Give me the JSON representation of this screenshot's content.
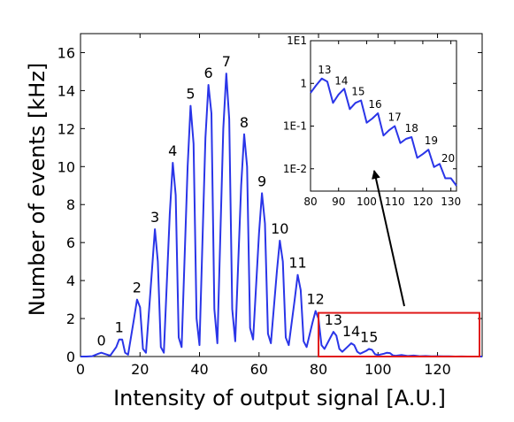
{
  "colors": {
    "line": "#2a35e8",
    "highlight": "#e01b1b",
    "arrow": "#000000"
  },
  "chart_data": [
    {
      "type": "line",
      "title": "",
      "xlabel": "Intensity of output signal [A.U.]",
      "ylabel": "Number of events [kHz]",
      "xlim": [
        0,
        135
      ],
      "ylim": [
        0,
        17
      ],
      "xticks": [
        0,
        20,
        40,
        60,
        80,
        100,
        120
      ],
      "yticks": [
        0,
        2,
        4,
        6,
        8,
        10,
        12,
        14,
        16
      ],
      "grid": false,
      "series": [
        {
          "x": [
            0,
            2,
            4,
            6,
            7,
            9,
            10,
            12,
            13,
            14,
            15,
            16,
            18,
            19,
            20,
            21,
            22,
            24,
            25,
            26,
            27,
            28,
            30,
            31,
            32,
            33,
            34,
            36,
            37,
            38,
            39,
            40,
            42,
            43,
            44,
            45,
            46,
            48,
            49,
            50,
            51,
            52,
            54,
            55,
            56,
            57,
            58,
            60,
            61,
            62,
            63,
            64,
            66,
            67,
            68,
            69,
            70,
            72,
            73,
            74,
            75,
            76,
            78,
            79,
            80,
            81,
            82,
            84,
            85,
            86,
            87,
            88,
            90,
            91,
            92,
            93,
            94,
            96,
            97,
            98,
            99,
            100,
            102,
            103,
            104,
            105,
            106,
            108,
            110,
            112,
            114,
            116,
            118,
            120,
            122,
            124,
            126,
            128,
            130,
            132,
            135
          ],
          "y": [
            0.0,
            0.0,
            0.02,
            0.15,
            0.2,
            0.1,
            0.05,
            0.5,
            0.9,
            0.9,
            0.2,
            0.1,
            2.0,
            3.0,
            2.6,
            0.4,
            0.2,
            4.5,
            6.7,
            5.0,
            0.5,
            0.2,
            7.5,
            10.2,
            8.5,
            1.0,
            0.5,
            10.0,
            13.2,
            11.2,
            2.0,
            0.6,
            11.5,
            14.3,
            12.8,
            2.5,
            0.7,
            12.0,
            14.9,
            12.5,
            2.5,
            0.8,
            9.0,
            11.7,
            10.0,
            1.5,
            0.9,
            6.5,
            8.6,
            7.0,
            1.2,
            0.7,
            4.5,
            6.1,
            5.0,
            1.0,
            0.6,
            3.0,
            4.3,
            3.5,
            0.8,
            0.5,
            1.8,
            2.4,
            2.0,
            0.6,
            0.4,
            1.0,
            1.3,
            1.1,
            0.4,
            0.25,
            0.55,
            0.7,
            0.6,
            0.25,
            0.15,
            0.3,
            0.4,
            0.35,
            0.12,
            0.08,
            0.15,
            0.2,
            0.18,
            0.06,
            0.04,
            0.08,
            0.03,
            0.05,
            0.02,
            0.03,
            0.01,
            0.02,
            0.01,
            0.01,
            0.0,
            0.005,
            0.0,
            0.0,
            0.0
          ]
        }
      ],
      "annotations": [
        {
          "text": "0",
          "x": 7,
          "y": 0.2
        },
        {
          "text": "1",
          "x": 13,
          "y": 0.9
        },
        {
          "text": "2",
          "x": 19,
          "y": 3.0
        },
        {
          "text": "3",
          "x": 25,
          "y": 6.7
        },
        {
          "text": "4",
          "x": 31,
          "y": 10.2
        },
        {
          "text": "5",
          "x": 37,
          "y": 13.2
        },
        {
          "text": "6",
          "x": 43,
          "y": 14.3
        },
        {
          "text": "7",
          "x": 49,
          "y": 14.9
        },
        {
          "text": "8",
          "x": 55,
          "y": 11.7
        },
        {
          "text": "9",
          "x": 61,
          "y": 8.6
        },
        {
          "text": "10",
          "x": 67,
          "y": 6.1
        },
        {
          "text": "11",
          "x": 73,
          "y": 4.3
        },
        {
          "text": "12",
          "x": 79,
          "y": 2.4
        },
        {
          "text": "13",
          "x": 85,
          "y": 1.3
        },
        {
          "text": "14",
          "x": 91,
          "y": 0.7
        },
        {
          "text": "15",
          "x": 97,
          "y": 0.4
        }
      ],
      "highlight_box": {
        "x": [
          80,
          135
        ],
        "y": [
          0,
          2.3
        ]
      }
    },
    {
      "type": "line",
      "title": "",
      "xlabel": "",
      "ylabel": "",
      "scale_y": "log",
      "xlim": [
        80,
        132
      ],
      "ylim": [
        0.003,
        10
      ],
      "xticks": [
        80,
        90,
        100,
        110,
        120,
        130
      ],
      "yticks": [
        {
          "value": 10,
          "label": "1E1"
        },
        {
          "value": 1,
          "label": "1"
        },
        {
          "value": 0.1,
          "label": "1E-1"
        },
        {
          "value": 0.01,
          "label": "1E-2"
        }
      ],
      "series": [
        {
          "x": [
            80,
            82,
            84,
            86,
            88,
            90,
            92,
            94,
            96,
            98,
            100,
            102,
            104,
            106,
            108,
            110,
            112,
            114,
            116,
            118,
            120,
            122,
            124,
            126,
            128,
            130,
            132
          ],
          "y": [
            0.6,
            0.9,
            1.3,
            1.1,
            0.35,
            0.55,
            0.75,
            0.25,
            0.35,
            0.4,
            0.12,
            0.15,
            0.2,
            0.06,
            0.08,
            0.1,
            0.04,
            0.05,
            0.055,
            0.018,
            0.022,
            0.028,
            0.011,
            0.013,
            0.006,
            0.006,
            0.004
          ]
        }
      ],
      "annotations": [
        {
          "text": "13",
          "x": 85,
          "y": 1.3
        },
        {
          "text": "14",
          "x": 91,
          "y": 0.7
        },
        {
          "text": "15",
          "x": 97,
          "y": 0.4
        },
        {
          "text": "16",
          "x": 103,
          "y": 0.2
        },
        {
          "text": "17",
          "x": 110,
          "y": 0.1
        },
        {
          "text": "18",
          "x": 116,
          "y": 0.055
        },
        {
          "text": "19",
          "x": 123,
          "y": 0.028
        },
        {
          "text": "20",
          "x": 129,
          "y": 0.011
        }
      ]
    }
  ]
}
